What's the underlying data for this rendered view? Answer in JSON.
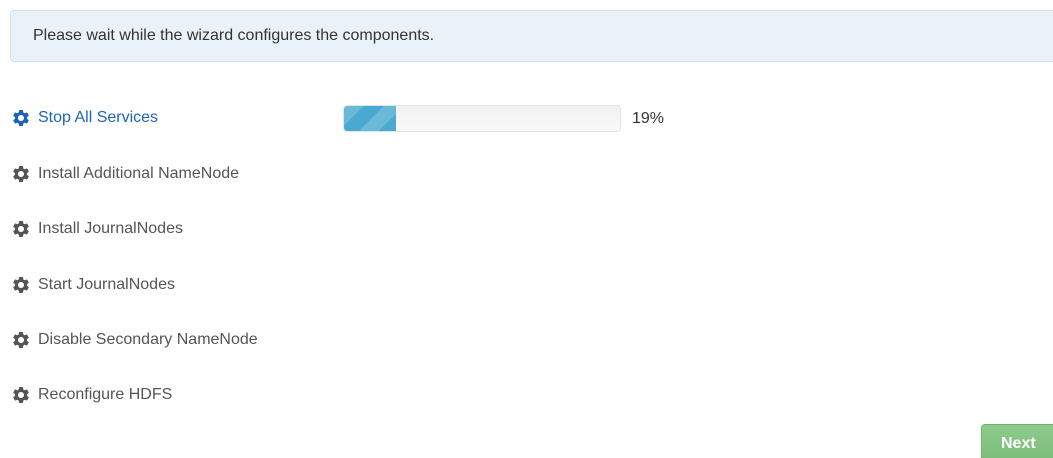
{
  "alert": {
    "message": "Please wait while the wizard configures the components."
  },
  "tasks": [
    {
      "label": "Stop All Services",
      "icon": "gear-icon",
      "status": "in-progress"
    },
    {
      "label": "Install Additional NameNode",
      "icon": "gear-icon",
      "status": "pending"
    },
    {
      "label": "Install JournalNodes",
      "icon": "gear-icon",
      "status": "pending"
    },
    {
      "label": "Start JournalNodes",
      "icon": "gear-icon",
      "status": "pending"
    },
    {
      "label": "Disable Secondary NameNode",
      "icon": "gear-icon",
      "status": "pending"
    },
    {
      "label": "Reconfigure HDFS",
      "icon": "gear-icon",
      "status": "pending"
    }
  ],
  "progress": {
    "percent": 19,
    "label": "19%"
  },
  "footer": {
    "next_label": "Next"
  },
  "colors": {
    "active": "#1f64b4",
    "pending": "#555555",
    "progress_fill": "#4aa9d0",
    "alert_bg": "#e9f2f8",
    "next_button": "#82c282"
  }
}
